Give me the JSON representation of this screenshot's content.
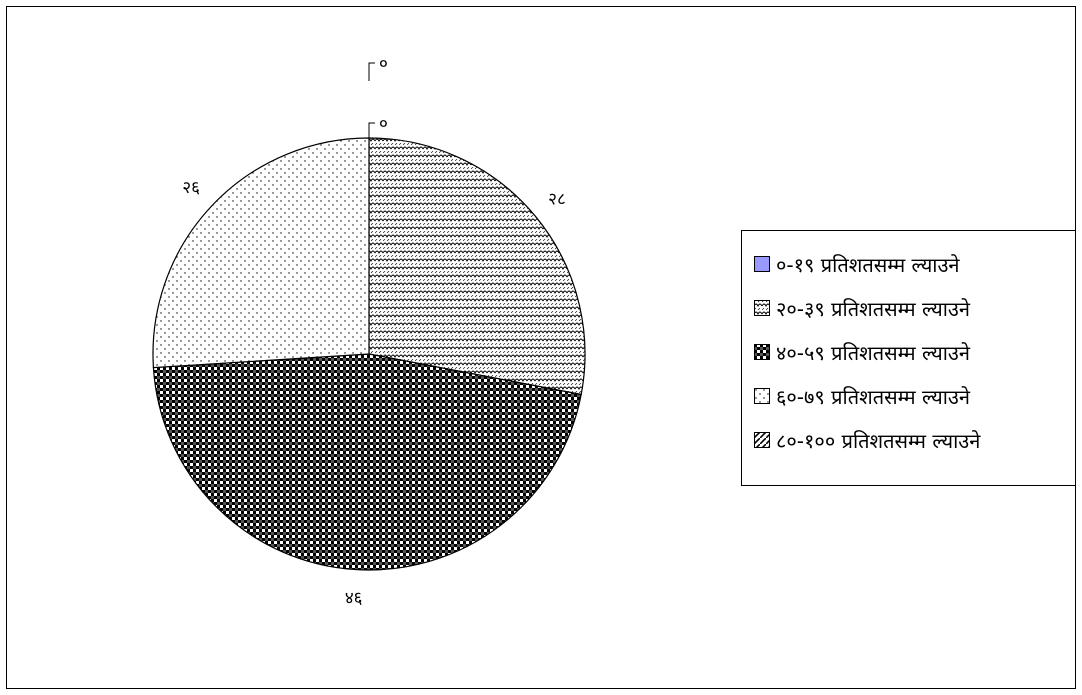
{
  "chart_data": {
    "type": "pie",
    "title": "",
    "categories": [
      "०-१९ प्रतिशतसम्म ल्याउने",
      "२०-३९ प्रतिशतसम्म ल्याउने",
      "४०-५९ प्रतिशतसम्म ल्याउने",
      "६०-७९ प्रतिशतसम्म ल्याउने",
      "८०-१०० प्रतिशतसम्म ल्याउने"
    ],
    "values": [
      0,
      28,
      46,
      26,
      0
    ],
    "data_labels": [
      "०",
      "२८",
      "४६",
      "२६",
      "०"
    ],
    "fills": [
      "solid",
      "scallop",
      "checker",
      "dots",
      "diagonal"
    ],
    "colors": [
      "#9999ff",
      "#000000",
      "#000000",
      "#000000",
      "#000000"
    ],
    "legend_position": "right"
  }
}
